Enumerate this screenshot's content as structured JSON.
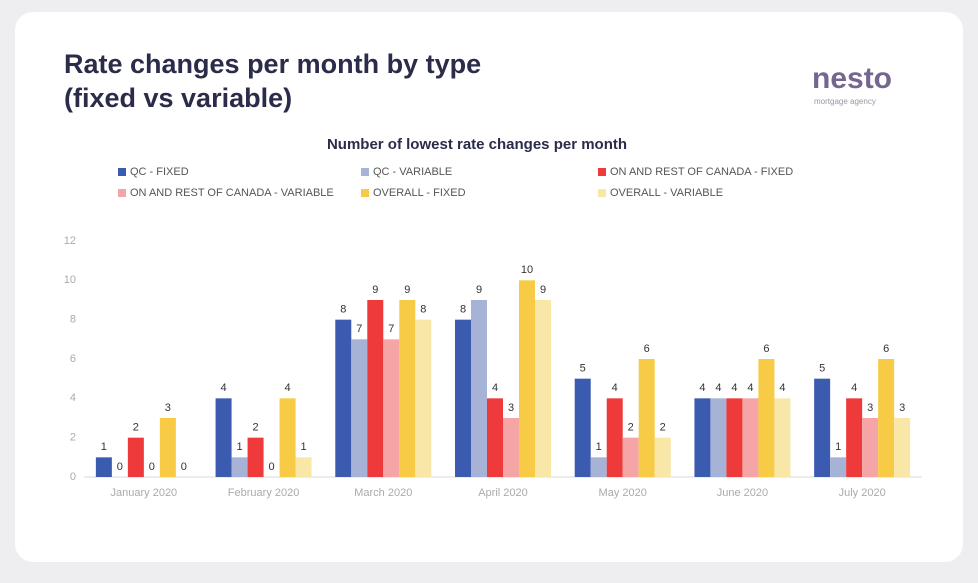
{
  "title_lines": [
    "Rate changes per month by type",
    "(fixed vs variable)"
  ],
  "logo": {
    "name": "nesto",
    "tagline": "mortgage agency"
  },
  "chart_data": {
    "type": "bar",
    "title": "Number of lowest rate changes per month",
    "categories": [
      "January 2020",
      "February 2020",
      "March 2020",
      "April 2020",
      "May 2020",
      "June 2020",
      "July 2020"
    ],
    "series": [
      {
        "name": "QC - FIXED",
        "color": "#3a5bb0",
        "values": [
          1,
          4,
          8,
          8,
          5,
          4,
          5
        ]
      },
      {
        "name": "QC - VARIABLE",
        "color": "#a7b3d6",
        "values": [
          0,
          1,
          7,
          9,
          1,
          4,
          1
        ]
      },
      {
        "name": "ON AND REST OF CANADA - FIXED",
        "color": "#ee3a3a",
        "values": [
          2,
          2,
          9,
          4,
          4,
          4,
          4
        ]
      },
      {
        "name": "ON AND REST OF CANADA - VARIABLE",
        "color": "#f5a5a5",
        "values": [
          0,
          0,
          7,
          3,
          2,
          4,
          3
        ]
      },
      {
        "name": "OVERALL - FIXED",
        "color": "#f7cb45",
        "values": [
          3,
          4,
          9,
          10,
          6,
          6,
          6
        ]
      },
      {
        "name": "OVERALL - VARIABLE",
        "color": "#f9e7a8",
        "values": [
          0,
          1,
          8,
          9,
          2,
          4,
          3
        ]
      }
    ],
    "ylim": [
      0,
      12
    ],
    "yticks": [
      0,
      2,
      4,
      6,
      8,
      10,
      12
    ],
    "grid": false,
    "legend": "top"
  }
}
